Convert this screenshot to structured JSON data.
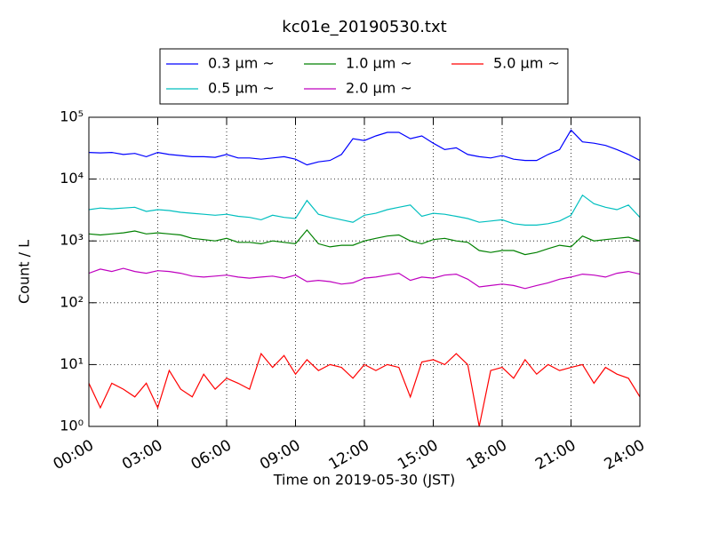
{
  "chart_data": {
    "type": "line",
    "title": "kc01e_20190530.txt",
    "x_label": "Time on 2019-05-30 (JST)",
    "y_label": "Count / L",
    "x": [
      0,
      0.5,
      1,
      1.5,
      2,
      2.5,
      3,
      3.5,
      4,
      4.5,
      5,
      5.5,
      6,
      6.5,
      7,
      7.5,
      8,
      8.5,
      9,
      9.5,
      10,
      10.5,
      11,
      11.5,
      12,
      12.5,
      13,
      13.5,
      14,
      14.5,
      15,
      15.5,
      16,
      16.5,
      17,
      17.5,
      18,
      18.5,
      19,
      19.5,
      20,
      20.5,
      21,
      21.5,
      22,
      22.5,
      23,
      23.5,
      24
    ],
    "xlim": [
      0,
      24
    ],
    "xticks": [
      {
        "value": 0,
        "label": "00:00"
      },
      {
        "value": 3,
        "label": "03:00"
      },
      {
        "value": 6,
        "label": "06:00"
      },
      {
        "value": 9,
        "label": "09:00"
      },
      {
        "value": 12,
        "label": "12:00"
      },
      {
        "value": 15,
        "label": "15:00"
      },
      {
        "value": 18,
        "label": "18:00"
      },
      {
        "value": 21,
        "label": "21:00"
      },
      {
        "value": 24,
        "label": "24:00"
      }
    ],
    "y_scale": "log",
    "ylim": [
      1,
      100000
    ],
    "yticks": [
      {
        "value": 1,
        "label": "10⁰"
      },
      {
        "value": 10,
        "label": "10¹"
      },
      {
        "value": 100,
        "label": "10²"
      },
      {
        "value": 1000,
        "label": "10³"
      },
      {
        "value": 10000,
        "label": "10⁴"
      },
      {
        "value": 100000,
        "label": "10⁵"
      }
    ],
    "grid": true,
    "legend_position": "top",
    "series": [
      {
        "name": "0.3 μm ~",
        "color": "#0000ff",
        "values": [
          27000,
          26500,
          27000,
          25000,
          26000,
          23000,
          27000,
          25000,
          24000,
          23000,
          23000,
          22500,
          25000,
          22000,
          22000,
          21000,
          22000,
          23000,
          21000,
          17000,
          19000,
          20000,
          25000,
          45000,
          42000,
          50000,
          57000,
          57000,
          45000,
          50000,
          38000,
          30000,
          32000,
          25000,
          23000,
          22000,
          24000,
          21000,
          20000,
          20000,
          25000,
          30000,
          62000,
          40000,
          38000,
          35000,
          30000,
          25000,
          20000
        ]
      },
      {
        "name": "0.5 μm ~",
        "color": "#00bfbf",
        "values": [
          3200,
          3400,
          3300,
          3400,
          3500,
          3000,
          3200,
          3100,
          2900,
          2800,
          2700,
          2600,
          2700,
          2500,
          2400,
          2200,
          2600,
          2400,
          2300,
          4500,
          2700,
          2400,
          2200,
          2000,
          2600,
          2800,
          3200,
          3500,
          3800,
          2500,
          2800,
          2700,
          2500,
          2300,
          2000,
          2100,
          2200,
          1900,
          1800,
          1800,
          1900,
          2100,
          2600,
          5500,
          4000,
          3500,
          3200,
          3800,
          2400
        ]
      },
      {
        "name": "1.0 μm ~",
        "color": "#008000",
        "values": [
          1300,
          1250,
          1300,
          1350,
          1450,
          1300,
          1350,
          1300,
          1250,
          1100,
          1050,
          1000,
          1100,
          950,
          950,
          900,
          1000,
          950,
          900,
          1500,
          900,
          800,
          850,
          850,
          1000,
          1100,
          1200,
          1250,
          1000,
          900,
          1050,
          1100,
          1000,
          950,
          700,
          650,
          700,
          700,
          600,
          650,
          750,
          850,
          800,
          1200,
          1000,
          1050,
          1100,
          1150,
          1000
        ]
      },
      {
        "name": "2.0 μm ~",
        "color": "#bf00bf",
        "values": [
          300,
          350,
          320,
          360,
          320,
          300,
          330,
          320,
          300,
          270,
          260,
          270,
          280,
          260,
          250,
          260,
          270,
          250,
          280,
          220,
          230,
          220,
          200,
          210,
          250,
          260,
          280,
          300,
          230,
          260,
          250,
          280,
          290,
          240,
          180,
          190,
          200,
          190,
          170,
          190,
          210,
          240,
          260,
          290,
          280,
          260,
          300,
          320,
          290
        ]
      },
      {
        "name": "5.0 μm ~",
        "color": "#ff0000",
        "values": [
          5,
          2,
          5,
          4,
          3,
          5,
          2,
          8,
          4,
          3,
          7,
          4,
          6,
          5,
          4,
          15,
          9,
          14,
          7,
          12,
          8,
          10,
          9,
          6,
          10,
          8,
          10,
          9,
          3,
          11,
          12,
          10,
          15,
          10,
          1,
          8,
          9,
          6,
          12,
          7,
          10,
          8,
          9,
          10,
          5,
          9,
          7,
          6,
          3
        ]
      }
    ]
  }
}
